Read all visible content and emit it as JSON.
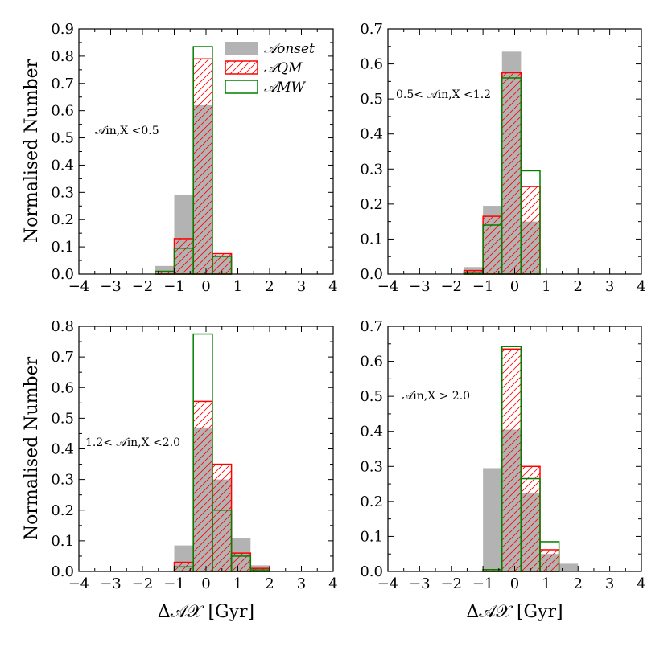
{
  "chart_data": [
    {
      "type": "bar",
      "panel": "top-left",
      "annotation": "𝒜in,X <0.5",
      "xlabel": "",
      "ylabel": "Normalised Number",
      "xlim": [
        -4,
        4
      ],
      "ylim": [
        0,
        0.9
      ],
      "xticks": [
        "−4",
        "−3",
        "−2",
        "−1",
        "0",
        "1",
        "2",
        "3",
        "4"
      ],
      "yticks": [
        "0.0",
        "0.1",
        "0.2",
        "0.3",
        "0.4",
        "0.5",
        "0.6",
        "0.7",
        "0.8",
        "0.9"
      ],
      "bin_edges": [
        -1.6,
        -1.0,
        -0.4,
        0.2,
        0.8
      ],
      "series": [
        {
          "name": "𝒜onset",
          "style": "filled",
          "color": "#b3b3b3",
          "values": [
            0.03,
            0.29,
            0.62,
            0.07
          ]
        },
        {
          "name": "𝒜QM",
          "style": "hatched",
          "color": "#ff0000",
          "values": [
            0.01,
            0.13,
            0.79,
            0.075
          ]
        },
        {
          "name": "𝒜MW",
          "style": "step",
          "color": "#008000",
          "values": [
            0.01,
            0.095,
            0.835,
            0.065
          ]
        }
      ],
      "legend": {
        "position": "top-right",
        "entries": [
          "𝒜onset",
          "𝒜QM",
          "𝒜MW"
        ]
      }
    },
    {
      "type": "bar",
      "panel": "top-right",
      "annotation": "0.5< 𝒜in,X <1.2",
      "xlabel": "",
      "ylabel": "",
      "xlim": [
        -4,
        4
      ],
      "ylim": [
        0,
        0.7
      ],
      "xticks": [
        "−4",
        "−3",
        "−2",
        "−1",
        "0",
        "1",
        "2",
        "3",
        "4"
      ],
      "yticks": [
        "0.0",
        "0.1",
        "0.2",
        "0.3",
        "0.4",
        "0.5",
        "0.6",
        "0.7"
      ],
      "bin_edges": [
        -1.6,
        -1.0,
        -0.4,
        0.2,
        0.8
      ],
      "series": [
        {
          "name": "𝒜onset",
          "style": "filled",
          "color": "#b3b3b3",
          "values": [
            0.02,
            0.195,
            0.635,
            0.15
          ]
        },
        {
          "name": "𝒜QM",
          "style": "hatched",
          "color": "#ff0000",
          "values": [
            0.01,
            0.165,
            0.575,
            0.25
          ]
        },
        {
          "name": "𝒜MW",
          "style": "step",
          "color": "#008000",
          "values": [
            0.005,
            0.14,
            0.56,
            0.295
          ]
        }
      ]
    },
    {
      "type": "bar",
      "panel": "bottom-left",
      "annotation": "1.2< 𝒜in,X <2.0",
      "xlabel": "Δ𝒜𝒳 [Gyr]",
      "ylabel": "Normalised Number",
      "xlim": [
        -4,
        4
      ],
      "ylim": [
        0,
        0.8
      ],
      "xticks": [
        "−4",
        "−3",
        "−2",
        "−1",
        "0",
        "1",
        "2",
        "3",
        "4"
      ],
      "yticks": [
        "0.0",
        "0.1",
        "0.2",
        "0.3",
        "0.4",
        "0.5",
        "0.6",
        "0.7",
        "0.8"
      ],
      "bin_edges": [
        -1.0,
        -0.4,
        0.2,
        0.8,
        1.4,
        2.0
      ],
      "series": [
        {
          "name": "𝒜onset",
          "style": "filled",
          "color": "#b3b3b3",
          "values": [
            0.085,
            0.47,
            0.3,
            0.11,
            0.02
          ]
        },
        {
          "name": "𝒜QM",
          "style": "hatched",
          "color": "#ff0000",
          "values": [
            0.03,
            0.555,
            0.35,
            0.06,
            0.01
          ]
        },
        {
          "name": "𝒜MW",
          "style": "step",
          "color": "#008000",
          "values": [
            0.015,
            0.775,
            0.2,
            0.05,
            0.005
          ]
        }
      ]
    },
    {
      "type": "bar",
      "panel": "bottom-right",
      "annotation": "𝒜in,X > 2.0",
      "xlabel": "Δ𝒜𝒳 [Gyr]",
      "ylabel": "",
      "xlim": [
        -4,
        4
      ],
      "ylim": [
        0,
        0.7
      ],
      "xticks": [
        "−4",
        "−3",
        "−2",
        "−1",
        "0",
        "1",
        "2",
        "3",
        "4"
      ],
      "yticks": [
        "0.0",
        "0.1",
        "0.2",
        "0.3",
        "0.4",
        "0.5",
        "0.6",
        "0.7"
      ],
      "bin_edges": [
        -1.0,
        -0.4,
        0.2,
        0.8,
        1.4,
        2.0
      ],
      "series": [
        {
          "name": "𝒜onset",
          "style": "filled",
          "color": "#b3b3b3",
          "values": [
            0.295,
            0.405,
            0.225,
            0.05,
            0.022
          ]
        },
        {
          "name": "𝒜QM",
          "style": "hatched",
          "color": "#ff0000",
          "values": [
            0.005,
            0.635,
            0.3,
            0.062,
            0.0
          ]
        },
        {
          "name": "𝒜MW",
          "style": "step",
          "color": "#008000",
          "values": [
            0.005,
            0.642,
            0.265,
            0.085,
            0.0
          ]
        }
      ]
    }
  ]
}
